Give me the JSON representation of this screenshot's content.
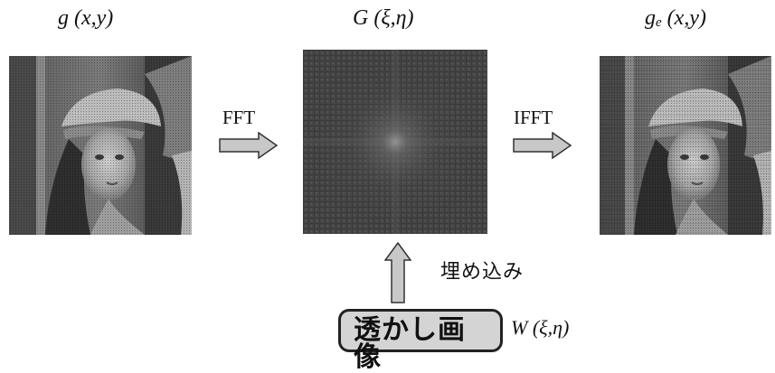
{
  "labels": {
    "input": {
      "base": "g",
      "args": "(x,y)"
    },
    "spectrum": {
      "base": "G",
      "args": "(ξ,η)"
    },
    "output": {
      "base": "g",
      "sub": "e",
      "args": "(x,y)"
    },
    "watermark_func": {
      "base": "W",
      "args": "(ξ,η)"
    }
  },
  "operations": {
    "forward": "FFT",
    "inverse": "IFFT",
    "embed": "埋め込み"
  },
  "watermark_box": "透かし画像"
}
